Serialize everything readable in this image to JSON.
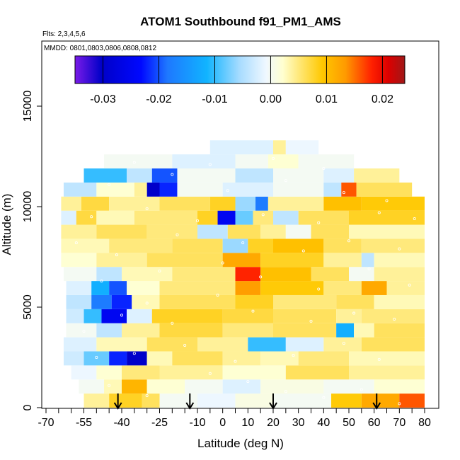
{
  "chart_data": {
    "type": "heatmap",
    "title": "ATOM1 Southbound f91_PM1_AMS",
    "subtitle_flights": "Flts: 2,3,4,5,6",
    "subtitle_dates": "MMDD: 0801,0803,0806,0808,0812",
    "xlabel": "Latitude (deg N)",
    "ylabel": "Altitude (m)",
    "xlim": [
      -70,
      80
    ],
    "ylim": [
      0,
      17500
    ],
    "xticks": [
      -70,
      -55,
      -40,
      -25,
      -10,
      0,
      10,
      20,
      30,
      40,
      50,
      60,
      70,
      80
    ],
    "xtick_labels": [
      "-70",
      "-55",
      "-40",
      "-25",
      "-10",
      "0",
      "10",
      "20",
      "30",
      "40",
      "50",
      "60",
      "70",
      "80"
    ],
    "xminor_ticks": [
      -65,
      -60,
      -50,
      -45,
      -35,
      -30,
      -20,
      -15,
      -5,
      5,
      15,
      25,
      35,
      45,
      55,
      65,
      75
    ],
    "yticks": [
      0,
      5000,
      10000,
      15000
    ],
    "ytick_labels": [
      "0",
      "5000",
      "10000",
      "15000"
    ],
    "colorbar": {
      "range": [
        -0.035,
        0.024
      ],
      "ticks": [
        -0.03,
        -0.02,
        -0.01,
        0.0,
        0.01,
        0.02
      ],
      "tick_labels": [
        "-0.03",
        "-0.02",
        "-0.01",
        "0.00",
        "0.01",
        "0.02"
      ],
      "colors": [
        "#7a1be8",
        "#0000c8",
        "#1e78ff",
        "#11b4ff",
        "#a8dcff",
        "#ffffd0",
        "#ffe040",
        "#ffb400",
        "#ff6a00",
        "#e00000",
        "#a01818"
      ]
    },
    "arrow_latitudes": [
      -41.5,
      -13,
      20,
      61
    ],
    "rows": [
      {
        "alt": [
          0,
          700
        ],
        "segments": [
          [
            -55,
            -45,
            0.004
          ],
          [
            -45,
            -32,
            0.008
          ],
          [
            -32,
            -25,
            0.006
          ],
          [
            -25,
            -10,
            0.0
          ],
          [
            -10,
            5,
            -0.001
          ],
          [
            5,
            20,
            0.001
          ],
          [
            20,
            43,
            0.0
          ],
          [
            43,
            55,
            0.009
          ],
          [
            55,
            70,
            0.012
          ],
          [
            70,
            80,
            0.016
          ]
        ]
      },
      {
        "alt": [
          700,
          1400
        ],
        "segments": [
          [
            -57,
            -47,
            0.0
          ],
          [
            -47,
            -40,
            0.003
          ],
          [
            -40,
            -30,
            0.011
          ],
          [
            -30,
            -15,
            0.002
          ],
          [
            -15,
            0,
            0.0
          ],
          [
            0,
            15,
            -0.002
          ],
          [
            15,
            40,
            0.001
          ],
          [
            40,
            60,
            0.0
          ],
          [
            60,
            80,
            0.002
          ]
        ]
      },
      {
        "alt": [
          1400,
          2100
        ],
        "segments": [
          [
            -60,
            -50,
            -0.001
          ],
          [
            -50,
            -40,
            0.002
          ],
          [
            -40,
            -25,
            0.005
          ],
          [
            -25,
            0,
            0.004
          ],
          [
            0,
            25,
            0.002
          ],
          [
            25,
            50,
            0.006
          ],
          [
            50,
            80,
            0.004
          ]
        ]
      },
      {
        "alt": [
          2100,
          2800
        ],
        "segments": [
          [
            -63,
            -55,
            -0.003
          ],
          [
            -55,
            -45,
            -0.008
          ],
          [
            -45,
            -38,
            -0.022
          ],
          [
            -38,
            -30,
            -0.03
          ],
          [
            -30,
            -20,
            0.003
          ],
          [
            -20,
            0,
            0.006
          ],
          [
            0,
            15,
            0.004
          ],
          [
            15,
            30,
            0.003
          ],
          [
            30,
            50,
            0.005
          ],
          [
            50,
            80,
            0.003
          ]
        ]
      },
      {
        "alt": [
          2800,
          3500
        ],
        "segments": [
          [
            -63,
            -50,
            -0.002
          ],
          [
            -50,
            -30,
            0.003
          ],
          [
            -30,
            -10,
            0.006
          ],
          [
            -10,
            10,
            0.004
          ],
          [
            10,
            25,
            -0.01
          ],
          [
            25,
            40,
            -0.002
          ],
          [
            40,
            55,
            0.004
          ],
          [
            55,
            80,
            0.006
          ]
        ]
      },
      {
        "alt": [
          3500,
          4200
        ],
        "segments": [
          [
            -62,
            -50,
            0.0
          ],
          [
            -50,
            -40,
            -0.004
          ],
          [
            -40,
            -25,
            0.004
          ],
          [
            -25,
            0,
            0.007
          ],
          [
            0,
            20,
            0.005
          ],
          [
            20,
            45,
            0.006
          ],
          [
            45,
            52,
            -0.012
          ],
          [
            52,
            60,
            0.003
          ],
          [
            60,
            80,
            0.006
          ]
        ]
      },
      {
        "alt": [
          4200,
          4900
        ],
        "segments": [
          [
            -62,
            -55,
            -0.003
          ],
          [
            -55,
            -48,
            -0.01
          ],
          [
            -48,
            -38,
            -0.025
          ],
          [
            -38,
            -28,
            -0.002
          ],
          [
            -28,
            0,
            0.008
          ],
          [
            0,
            20,
            0.007
          ],
          [
            20,
            45,
            0.006
          ],
          [
            45,
            55,
            0.004
          ],
          [
            55,
            80,
            0.005
          ]
        ]
      },
      {
        "alt": [
          4900,
          5600
        ],
        "segments": [
          [
            -62,
            -52,
            -0.004
          ],
          [
            -52,
            -44,
            -0.018
          ],
          [
            -44,
            -36,
            -0.022
          ],
          [
            -36,
            -25,
            0.003
          ],
          [
            -25,
            5,
            0.006
          ],
          [
            5,
            20,
            0.008
          ],
          [
            20,
            45,
            0.005
          ],
          [
            45,
            60,
            0.006
          ],
          [
            60,
            80,
            0.003
          ]
        ]
      },
      {
        "alt": [
          5600,
          6300
        ],
        "segments": [
          [
            -62,
            -52,
            -0.002
          ],
          [
            -52,
            -45,
            -0.012
          ],
          [
            -45,
            -38,
            -0.02
          ],
          [
            -38,
            -25,
            0.002
          ],
          [
            -25,
            5,
            0.005
          ],
          [
            5,
            15,
            0.013
          ],
          [
            15,
            40,
            0.009
          ],
          [
            40,
            55,
            0.005
          ],
          [
            55,
            65,
            0.012
          ],
          [
            65,
            80,
            0.004
          ]
        ]
      },
      {
        "alt": [
          6300,
          7000
        ],
        "segments": [
          [
            -63,
            -50,
            0.0
          ],
          [
            -50,
            -40,
            -0.004
          ],
          [
            -40,
            -20,
            0.003
          ],
          [
            -20,
            5,
            0.005
          ],
          [
            5,
            15,
            0.018
          ],
          [
            15,
            35,
            0.01
          ],
          [
            35,
            50,
            0.006
          ],
          [
            50,
            60,
            0.0
          ],
          [
            60,
            80,
            0.004
          ]
        ]
      },
      {
        "alt": [
          7000,
          7700
        ],
        "segments": [
          [
            -64,
            -50,
            0.002
          ],
          [
            -50,
            -30,
            0.004
          ],
          [
            -30,
            0,
            0.006
          ],
          [
            0,
            15,
            0.012
          ],
          [
            15,
            40,
            0.008
          ],
          [
            40,
            55,
            0.004
          ],
          [
            55,
            60,
            -0.004
          ],
          [
            60,
            80,
            0.003
          ]
        ]
      },
      {
        "alt": [
          7700,
          8400
        ],
        "segments": [
          [
            -64,
            -45,
            0.003
          ],
          [
            -45,
            -20,
            0.005
          ],
          [
            -20,
            0,
            0.006
          ],
          [
            0,
            10,
            -0.006
          ],
          [
            10,
            20,
            0.008
          ],
          [
            20,
            40,
            0.01
          ],
          [
            40,
            55,
            0.006
          ],
          [
            55,
            80,
            0.005
          ]
        ]
      },
      {
        "alt": [
          8400,
          9100
        ],
        "segments": [
          [
            -64,
            -50,
            0.004
          ],
          [
            -50,
            -30,
            0.006
          ],
          [
            -30,
            -10,
            0.005
          ],
          [
            -10,
            2,
            -0.004
          ],
          [
            2,
            15,
            0.006
          ],
          [
            15,
            25,
            0.004
          ],
          [
            25,
            35,
            0.0
          ],
          [
            35,
            50,
            0.006
          ],
          [
            50,
            80,
            0.003
          ]
        ]
      },
      {
        "alt": [
          9100,
          9800
        ],
        "segments": [
          [
            -64,
            -58,
            -0.002
          ],
          [
            -58,
            -50,
            0.007
          ],
          [
            -50,
            -35,
            0.003
          ],
          [
            -35,
            -10,
            0.005
          ],
          [
            -10,
            -2,
            0.008
          ],
          [
            -2,
            5,
            -0.025
          ],
          [
            5,
            12,
            -0.008
          ],
          [
            12,
            20,
            0.005
          ],
          [
            20,
            30,
            -0.004
          ],
          [
            30,
            50,
            0.006
          ],
          [
            50,
            80,
            0.008
          ]
        ]
      },
      {
        "alt": [
          9800,
          10500
        ],
        "segments": [
          [
            -64,
            -56,
            0.004
          ],
          [
            -56,
            -45,
            0.007
          ],
          [
            -45,
            -25,
            0.004
          ],
          [
            -25,
            -5,
            0.006
          ],
          [
            -5,
            5,
            0.008
          ],
          [
            5,
            13,
            -0.006
          ],
          [
            13,
            18,
            -0.018
          ],
          [
            18,
            40,
            0.004
          ],
          [
            40,
            55,
            0.01
          ],
          [
            55,
            80,
            0.009
          ]
        ]
      },
      {
        "alt": [
          10500,
          11200
        ],
        "segments": [
          [
            -63,
            -50,
            -0.004
          ],
          [
            -50,
            -35,
            0.002
          ],
          [
            -35,
            -30,
            0.004
          ],
          [
            -30,
            -25,
            -0.03
          ],
          [
            -25,
            -18,
            -0.022
          ],
          [
            -18,
            0,
            0.0
          ],
          [
            0,
            20,
            -0.002
          ],
          [
            20,
            40,
            0.0
          ],
          [
            40,
            47,
            -0.004
          ],
          [
            47,
            53,
            0.016
          ],
          [
            53,
            75,
            0.006
          ]
        ]
      },
      {
        "alt": [
          11200,
          11900
        ],
        "segments": [
          [
            -55,
            -38,
            -0.01
          ],
          [
            -38,
            -28,
            -0.004
          ],
          [
            -28,
            -18,
            -0.02
          ],
          [
            -18,
            5,
            0.0
          ],
          [
            5,
            20,
            -0.004
          ],
          [
            20,
            40,
            0.0
          ],
          [
            40,
            52,
            -0.002
          ],
          [
            52,
            70,
            0.004
          ]
        ]
      },
      {
        "alt": [
          11900,
          12600
        ],
        "segments": [
          [
            -47,
            -20,
            0.0
          ],
          [
            -20,
            5,
            -0.002
          ],
          [
            5,
            18,
            0.0
          ],
          [
            18,
            30,
            0.002
          ],
          [
            30,
            52,
            0.0
          ]
        ]
      },
      {
        "alt": [
          12600,
          13300
        ],
        "segments": [
          [
            -5,
            20,
            -0.002
          ],
          [
            20,
            25,
            0.004
          ],
          [
            25,
            38,
            -0.001
          ]
        ]
      }
    ],
    "markers": [
      [
        -60,
        300
      ],
      [
        -30,
        600
      ],
      [
        -45,
        1100
      ],
      [
        -5,
        1700
      ],
      [
        10,
        1300
      ],
      [
        25,
        800
      ],
      [
        40,
        500
      ],
      [
        55,
        900
      ],
      [
        70,
        200
      ],
      [
        -50,
        2500
      ],
      [
        -35,
        2700
      ],
      [
        -15,
        3100
      ],
      [
        5,
        2300
      ],
      [
        28,
        2600
      ],
      [
        48,
        3200
      ],
      [
        62,
        2400
      ],
      [
        -55,
        3800
      ],
      [
        -40,
        4600
      ],
      [
        -30,
        5200
      ],
      [
        -20,
        4200
      ],
      [
        -2,
        5600
      ],
      [
        12,
        4800
      ],
      [
        35,
        4300
      ],
      [
        52,
        4700
      ],
      [
        68,
        4400
      ],
      [
        -48,
        6300
      ],
      [
        -25,
        6800
      ],
      [
        0,
        7200
      ],
      [
        15,
        6500
      ],
      [
        38,
        5900
      ],
      [
        58,
        6900
      ],
      [
        74,
        6100
      ],
      [
        -58,
        8200
      ],
      [
        -42,
        7600
      ],
      [
        -18,
        8600
      ],
      [
        8,
        8200
      ],
      [
        32,
        7800
      ],
      [
        50,
        8300
      ],
      [
        70,
        7900
      ],
      [
        -52,
        9500
      ],
      [
        -30,
        9900
      ],
      [
        -10,
        9300
      ],
      [
        16,
        9600
      ],
      [
        38,
        9200
      ],
      [
        62,
        9700
      ],
      [
        76,
        9400
      ],
      [
        -45,
        11100
      ],
      [
        -20,
        11600
      ],
      [
        2,
        10800
      ],
      [
        25,
        11300
      ],
      [
        48,
        10700
      ],
      [
        65,
        10300
      ],
      [
        -35,
        12200
      ],
      [
        -5,
        12100
      ],
      [
        20,
        12400
      ],
      [
        40,
        11900
      ]
    ]
  }
}
